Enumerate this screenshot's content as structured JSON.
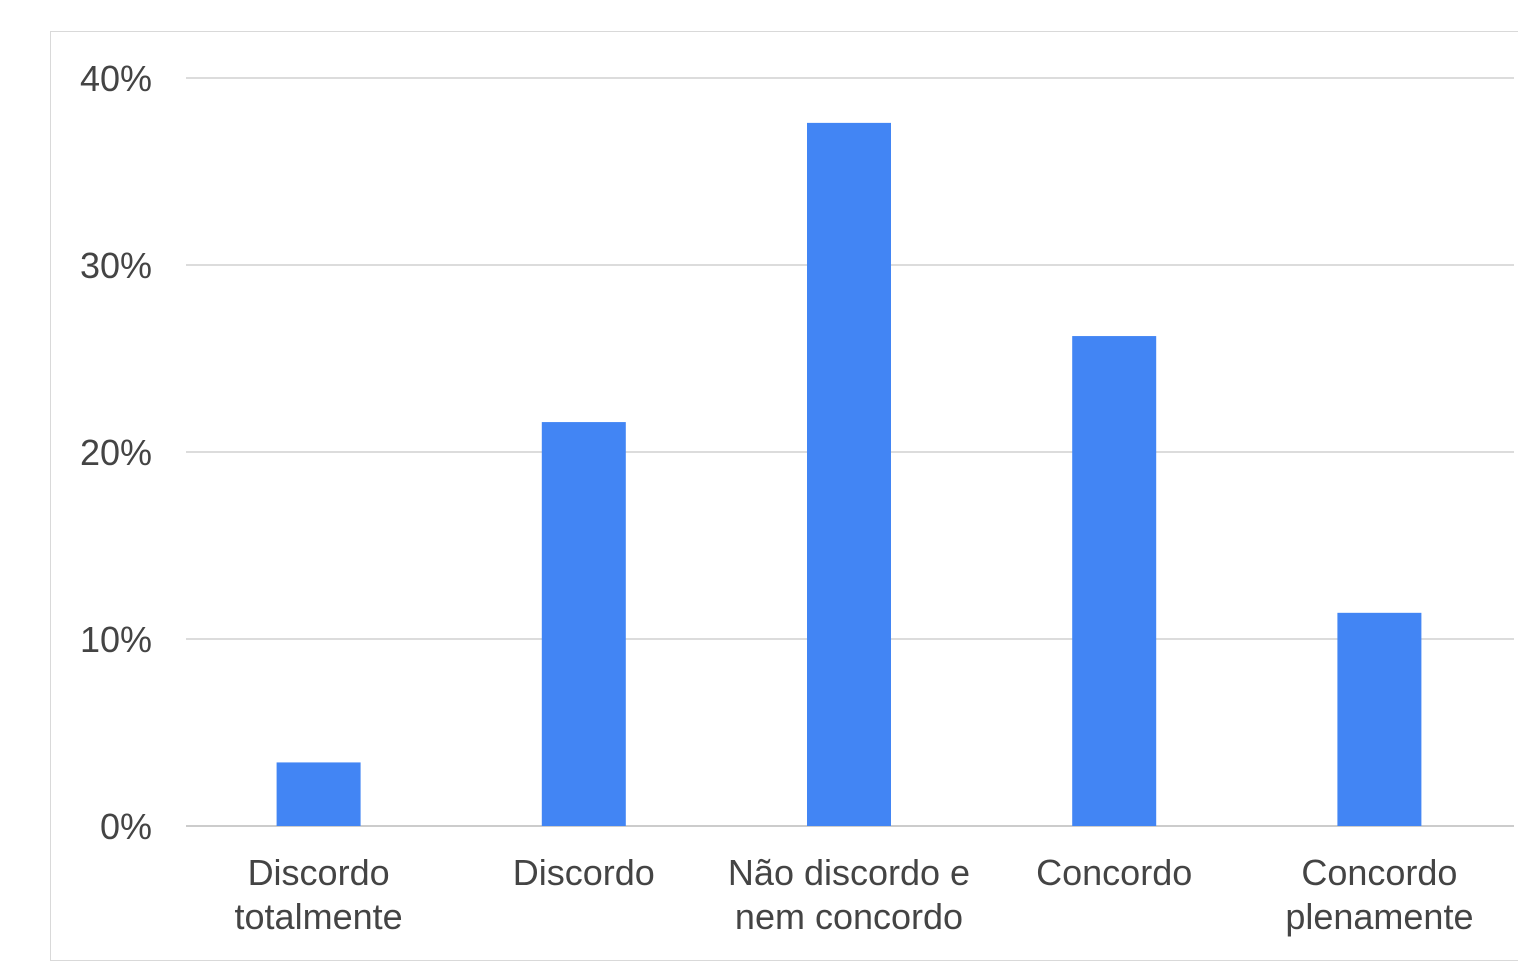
{
  "chart_data": {
    "type": "bar",
    "categories": [
      [
        "Discordo",
        "totalmente"
      ],
      [
        "Discordo"
      ],
      [
        "Não discordo e",
        "nem concordo"
      ],
      [
        "Concordo"
      ],
      [
        "Concordo",
        "plenamente"
      ]
    ],
    "values": [
      3.4,
      21.6,
      37.6,
      26.2,
      11.4
    ],
    "yticks": [
      "0%",
      "10%",
      "20%",
      "30%",
      "40%"
    ],
    "ylim": [
      0,
      40
    ],
    "grid": true,
    "bar_color": "#4285f4",
    "legend": "none"
  }
}
